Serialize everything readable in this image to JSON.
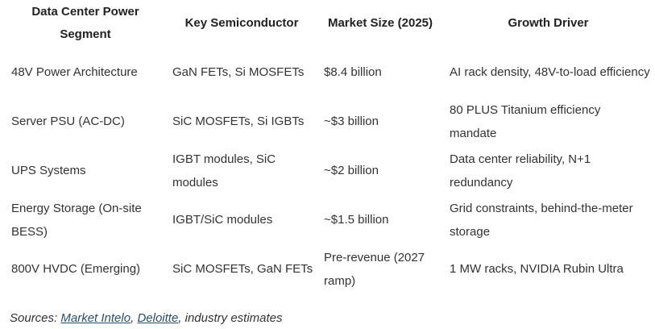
{
  "table": {
    "headers": [
      "Data Center Power Segment",
      "Key Semiconductor",
      "Market Size (2025)",
      "Growth Driver"
    ],
    "rows": [
      [
        "48V Power Architecture",
        "GaN FETs, Si MOSFETs",
        "$8.4 billion",
        "AI rack density, 48V-to-load efficiency"
      ],
      [
        "Server PSU (AC-DC)",
        "SiC MOSFETs, Si IGBTs",
        "~$3 billion",
        "80 PLUS Titanium efficiency mandate"
      ],
      [
        "UPS Systems",
        "IGBT modules, SiC modules",
        "~$2 billion",
        "Data center reliability, N+1 redundancy"
      ],
      [
        "Energy Storage (On-site BESS)",
        "IGBT/SiC modules",
        "~$1.5 billion",
        "Grid constraints, behind-the-meter storage"
      ],
      [
        "800V HVDC (Emerging)",
        "SiC MOSFETs, GaN FETs",
        "Pre-revenue (2027 ramp)",
        "1 MW racks, NVIDIA Rubin Ultra"
      ]
    ]
  },
  "sources": {
    "prefix": "Sources: ",
    "link1": "Market Intelo",
    "sep": ", ",
    "link2": "Deloitte",
    "suffix": ", industry estimates"
  },
  "colors": {
    "text": "#333333",
    "link": "#2a4f6a"
  }
}
